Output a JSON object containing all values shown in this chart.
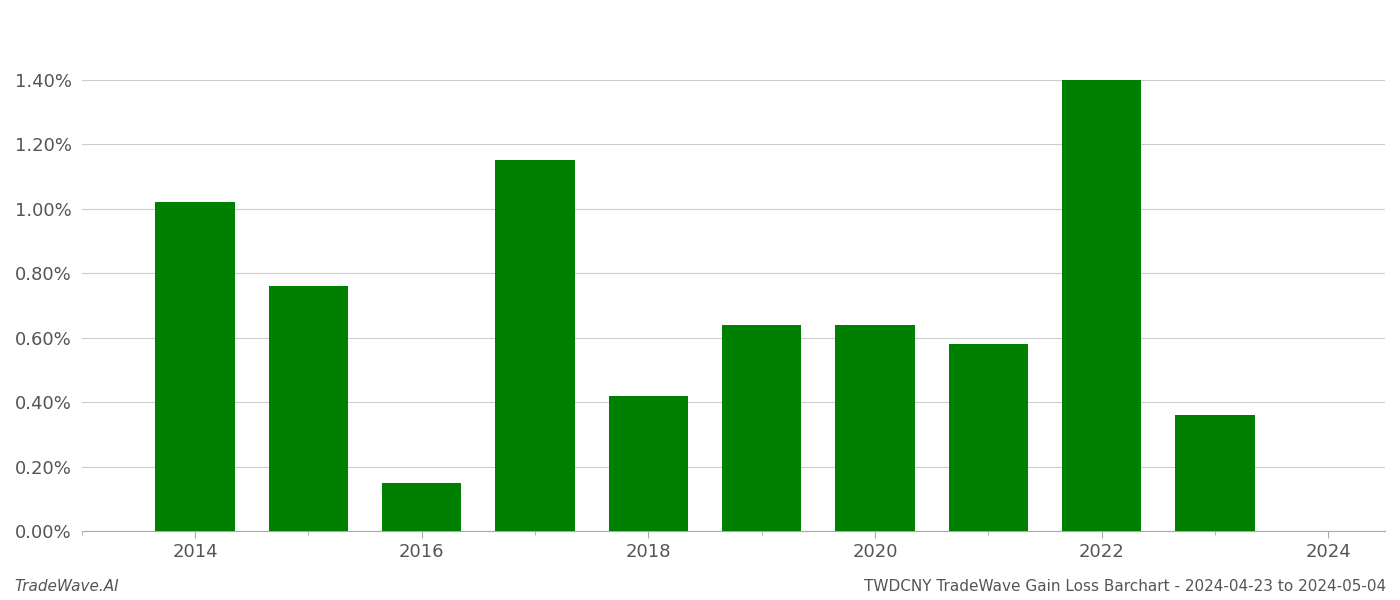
{
  "years": [
    2014,
    2015,
    2016,
    2017,
    2018,
    2019,
    2020,
    2021,
    2022,
    2023
  ],
  "values": [
    0.0102,
    0.0076,
    0.0015,
    0.0115,
    0.0042,
    0.0064,
    0.0064,
    0.0058,
    0.014,
    0.0036
  ],
  "bar_color": "#008000",
  "background_color": "#ffffff",
  "grid_color": "#cccccc",
  "footer_left": "TradeWave.AI",
  "footer_right": "TWDCNY TradeWave Gain Loss Barchart - 2024-04-23 to 2024-05-04",
  "ylim": [
    0,
    0.016
  ],
  "yticks": [
    0.0,
    0.002,
    0.004,
    0.006,
    0.008,
    0.01,
    0.012,
    0.014
  ],
  "xticks": [
    2014,
    2016,
    2018,
    2020,
    2022,
    2024
  ],
  "xlim": [
    2013.3,
    2024.5
  ],
  "tick_fontsize": 13,
  "footer_fontsize": 11,
  "bar_width": 0.7
}
